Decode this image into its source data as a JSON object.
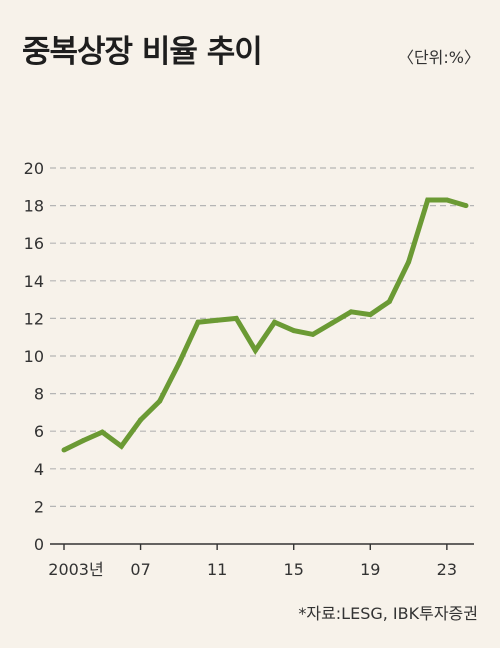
{
  "header": {
    "title": "중복상장 비율 추이",
    "unit": "〈단위:%〉"
  },
  "footer": {
    "source": "*자료:LESG, IBK투자증권"
  },
  "colors": {
    "line": "#6b9a34",
    "grid": "#b5b5b5",
    "axis": "#333333",
    "background": "#f7f2ea"
  },
  "chart_data": {
    "type": "line",
    "title": "중복상장 비율 추이",
    "xlabel": "",
    "ylabel": "",
    "ylim": [
      0,
      20
    ],
    "yticks": [
      0,
      2,
      4,
      6,
      8,
      10,
      12,
      14,
      16,
      18,
      20
    ],
    "grid": true,
    "x": [
      2003,
      2004,
      2005,
      2006,
      2007,
      2008,
      2009,
      2010,
      2011,
      2012,
      2013,
      2014,
      2015,
      2016,
      2017,
      2018,
      2019,
      2020,
      2021,
      2022,
      2023,
      2024
    ],
    "xticks": [
      {
        "x": 2003,
        "label": "2003년"
      },
      {
        "x": 2007,
        "label": "07"
      },
      {
        "x": 2011,
        "label": "11"
      },
      {
        "x": 2015,
        "label": "15"
      },
      {
        "x": 2019,
        "label": "19"
      },
      {
        "x": 2023,
        "label": "23"
      }
    ],
    "series": [
      {
        "values": [
          5.0,
          5.5,
          5.95,
          5.2,
          6.6,
          7.6,
          9.6,
          11.8,
          11.9,
          12.0,
          10.3,
          11.8,
          11.35,
          11.15,
          11.75,
          12.35,
          12.2,
          12.9,
          15.0,
          18.3,
          18.3,
          18.0
        ]
      }
    ]
  }
}
